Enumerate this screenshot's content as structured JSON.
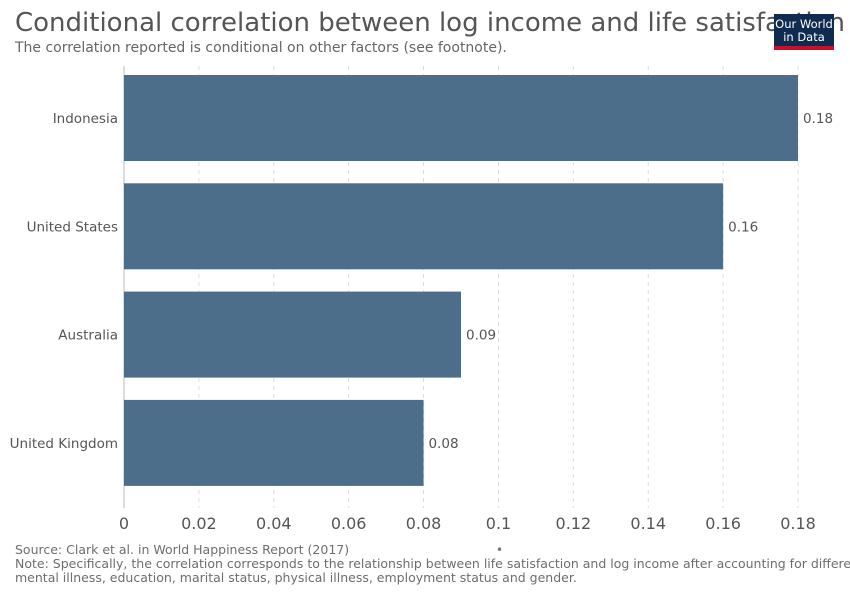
{
  "header": {
    "title": "Conditional correlation between log income and life satisfaction",
    "subtitle": "The correlation reported is conditional on other factors (see footnote).",
    "logo_line1": "Our World",
    "logo_line2": "in Data"
  },
  "footer": {
    "source": "Source: Clark et al. in World Happiness Report (2017)",
    "dot": "•",
    "note_line1": "Note: Specifically, the correlation corresponds to the relationship between life satisfaction and log income after accounting for differences in",
    "note_line2": "mental illness, education, marital status, physical illness, employment status and gender."
  },
  "colors": {
    "bar": "#4c6e8b",
    "grid": "#dddddd",
    "axis": "#bbbbbb",
    "text": "#555555"
  },
  "chart_data": {
    "type": "bar",
    "orientation": "horizontal",
    "categories": [
      "Indonesia",
      "United States",
      "Australia",
      "United Kingdom"
    ],
    "values": [
      0.18,
      0.16,
      0.09,
      0.08
    ],
    "value_labels": [
      "0.18",
      "0.16",
      "0.09",
      "0.08"
    ],
    "xlim": [
      0,
      0.18
    ],
    "xticks": [
      0,
      0.02,
      0.04,
      0.06,
      0.08,
      0.1,
      0.12,
      0.14,
      0.16,
      0.18
    ],
    "xtick_labels": [
      "0",
      "0.02",
      "0.04",
      "0.06",
      "0.08",
      "0.1",
      "0.12",
      "0.14",
      "0.16",
      "0.18"
    ],
    "grid": true
  }
}
